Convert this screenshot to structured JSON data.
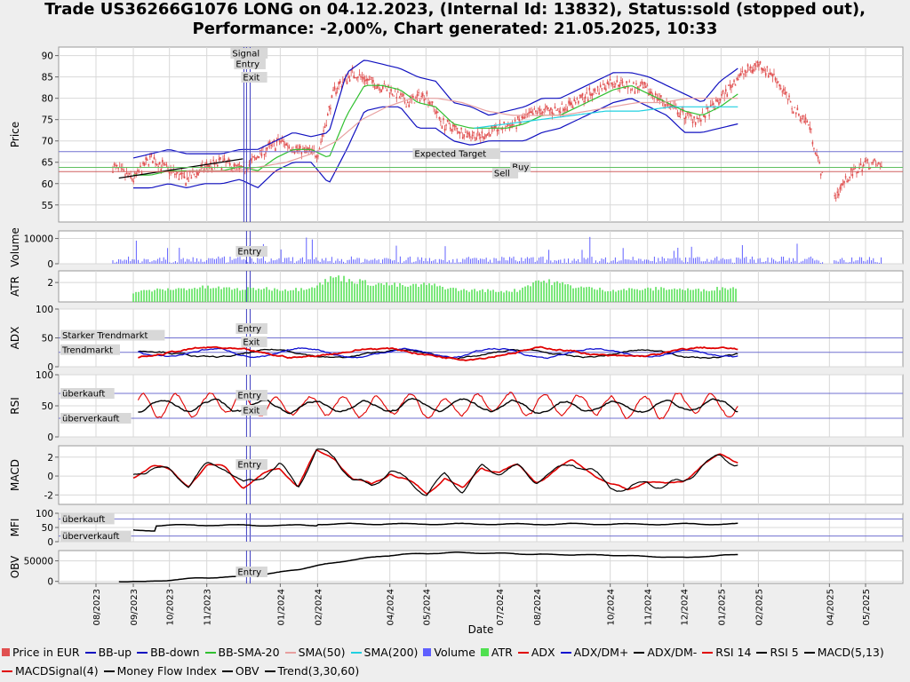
{
  "header": {
    "title_line1": "Trade US36266G1076 LONG on 04.12.2023, (Internal Id: 13832), Status:sold (stopped out),",
    "title_line2": "Performance: -2,00%, Chart generated: 21.05.2025, 10:33"
  },
  "colors": {
    "price": "#e05050",
    "bb": "#1010c0",
    "bb_sma": "#30c030",
    "sma50": "#e8a0a0",
    "sma200": "#20d0e0",
    "volume": "#6060ff",
    "atr": "#50e050",
    "adx": "#e00000",
    "dm_plus": "#1010d0",
    "dm_minus": "#000000",
    "rsi14": "#e00000",
    "rsi5": "#000000",
    "macd": "#000000",
    "macd_signal": "#e00000",
    "mfi": "#000000",
    "obv": "#000000"
  },
  "chart_data": {
    "type": "line",
    "xlabel": "Date",
    "x_ticks": [
      "08/2023",
      "09/2023",
      "10/2023",
      "11/2023",
      "01/2024",
      "02/2024",
      "04/2024",
      "05/2024",
      "07/2024",
      "08/2024",
      "10/2024",
      "11/2024",
      "12/2024",
      "01/2025",
      "02/2025",
      "04/2025",
      "05/2025"
    ],
    "panels": [
      {
        "name": "price",
        "ylabel": "Price",
        "ylim": [
          51,
          92
        ],
        "y_ticks": [
          55,
          60,
          65,
          70,
          75,
          80,
          85,
          90
        ],
        "annotations": [
          "Signal",
          "Entry",
          "Exit",
          "Expected Target",
          "Buy",
          "Sell"
        ],
        "expected_target": 67.5,
        "buy_level": 63.8,
        "sell_level": 62.8,
        "series": [
          {
            "name": "Price in EUR",
            "x": [
              "2023-08-15",
              "2023-09-01",
              "2023-09-15",
              "2023-10-01",
              "2023-10-15",
              "2023-11-01",
              "2023-11-15",
              "2023-12-01",
              "2023-12-15",
              "2024-01-01",
              "2024-01-15",
              "2024-02-01",
              "2024-02-15",
              "2024-03-01",
              "2024-03-15",
              "2024-04-01",
              "2024-04-15",
              "2024-05-01",
              "2024-05-15",
              "2024-06-01",
              "2024-06-15",
              "2024-07-01",
              "2024-07-15",
              "2024-08-01",
              "2024-08-15",
              "2024-09-01",
              "2024-09-15",
              "2024-10-01",
              "2024-10-15",
              "2024-11-01",
              "2024-11-15",
              "2024-12-01",
              "2024-12-15",
              "2025-01-01",
              "2025-01-15",
              "2025-02-01",
              "2025-02-15",
              "2025-03-01",
              "2025-03-15",
              "2025-04-01",
              "2025-04-15",
              "2025-05-01",
              "2025-05-15"
            ],
            "values": [
              64,
              61,
              66,
              63,
              61,
              64,
              65,
              63,
              67,
              70,
              68,
              67,
              82,
              86,
              84,
              82,
              79,
              81,
              74,
              72,
              71,
              73,
              74,
              77,
              77,
              79,
              81,
              84,
              83,
              82,
              79,
              76,
              75,
              80,
              85,
              88,
              85,
              78,
              74,
              55,
              61,
              65,
              64
            ]
          },
          {
            "name": "BB-up",
            "values": [
              66,
              67,
              68,
              67,
              67,
              67,
              68,
              68,
              70,
              72,
              71,
              72,
              86,
              89,
              88,
              87,
              85,
              84,
              79,
              78,
              76,
              77,
              78,
              80,
              80,
              82,
              84,
              86,
              86,
              85,
              83,
              81,
              79,
              84,
              87
            ]
          },
          {
            "name": "BB-down",
            "values": [
              59,
              59,
              60,
              59,
              60,
              60,
              61,
              59,
              63,
              65,
              65,
              60,
              68,
              77,
              78,
              78,
              73,
              73,
              70,
              69,
              70,
              70,
              70,
              72,
              73,
              75,
              77,
              79,
              80,
              78,
              76,
              72,
              72,
              73,
              74
            ]
          },
          {
            "name": "BB-SMA-20",
            "values": [
              62,
              62,
              63,
              63,
              63,
              63,
              64,
              63,
              66,
              68,
              68,
              66,
              76,
              83,
              83,
              82,
              79,
              78,
              74,
              73,
              73,
              73,
              74,
              76,
              76,
              78,
              80,
              82,
              83,
              81,
              79,
              77,
              76,
              78,
              81
            ]
          },
          {
            "name": "SMA(50)",
            "values": [
              63,
              63,
              63,
              64,
              65,
              67,
              70,
              75,
              78,
              80,
              80,
              79,
              77,
              76,
              76,
              76,
              77,
              78,
              79,
              79,
              80,
              80,
              80
            ]
          },
          {
            "name": "SMA(200)",
            "values": [
              73,
              74,
              75,
              76,
              77,
              77,
              78,
              78,
              78
            ]
          }
        ]
      },
      {
        "name": "volume",
        "ylabel": "Volume",
        "y_ticks": [
          0,
          10000
        ],
        "ylim": [
          0,
          13000
        ],
        "annotations": [
          "Entry"
        ]
      },
      {
        "name": "atr",
        "ylabel": "ATR",
        "y_ticks": [
          2
        ],
        "ylim": [
          0,
          3.2
        ]
      },
      {
        "name": "adx",
        "ylabel": "ADX",
        "y_ticks": [
          0,
          50,
          100
        ],
        "ylim": [
          0,
          100
        ],
        "levels": [
          {
            "label": "Starker Trendmarkt",
            "value": 50
          },
          {
            "label": "Trendmarkt",
            "value": 25
          }
        ],
        "annotations": [
          "Entry",
          "Exit"
        ]
      },
      {
        "name": "rsi",
        "ylabel": "RSI",
        "y_ticks": [
          0,
          50,
          100
        ],
        "ylim": [
          0,
          100
        ],
        "levels": [
          {
            "label": "überkauft",
            "value": 70
          },
          {
            "label": "überverkauft",
            "value": 30
          }
        ],
        "annotations": [
          "Entry",
          "Exit"
        ]
      },
      {
        "name": "macd",
        "ylabel": "MACD",
        "y_ticks": [
          -2,
          0,
          2
        ],
        "ylim": [
          -3,
          3.2
        ],
        "annotations": [
          "Entry"
        ]
      },
      {
        "name": "mfi",
        "ylabel": "MFI",
        "y_ticks": [
          0,
          50,
          100
        ],
        "ylim": [
          0,
          100
        ],
        "levels": [
          {
            "label": "überkauft",
            "value": 80
          },
          {
            "label": "überverkauft",
            "value": 20
          }
        ]
      },
      {
        "name": "obv",
        "ylabel": "OBV",
        "y_ticks": [
          0,
          50000
        ],
        "ylim": [
          -5000,
          75000
        ],
        "annotations": [
          "Entry"
        ]
      }
    ]
  },
  "legend": [
    {
      "label": "Price in EUR",
      "kind": "box",
      "color": "#e05050"
    },
    {
      "label": "BB-up",
      "kind": "line",
      "color": "#1010c0"
    },
    {
      "label": "BB-down",
      "kind": "line",
      "color": "#1010c0"
    },
    {
      "label": "BB-SMA-20",
      "kind": "line",
      "color": "#30c030"
    },
    {
      "label": "SMA(50)",
      "kind": "line",
      "color": "#e8a0a0"
    },
    {
      "label": "SMA(200)",
      "kind": "line",
      "color": "#20d0e0"
    },
    {
      "label": "Volume",
      "kind": "box",
      "color": "#6060ff"
    },
    {
      "label": "ATR",
      "kind": "box",
      "color": "#50e050"
    },
    {
      "label": "ADX",
      "kind": "line",
      "color": "#e00000"
    },
    {
      "label": "ADX/DM+",
      "kind": "line",
      "color": "#1010d0"
    },
    {
      "label": "ADX/DM-",
      "kind": "line",
      "color": "#000000"
    },
    {
      "label": "RSI 14",
      "kind": "line",
      "color": "#e00000"
    },
    {
      "label": "RSI 5",
      "kind": "line",
      "color": "#000000"
    },
    {
      "label": "MACD(5,13)",
      "kind": "line",
      "color": "#000000"
    },
    {
      "label": "MACDSignal(4)",
      "kind": "line",
      "color": "#e00000"
    },
    {
      "label": "Money Flow Index",
      "kind": "line",
      "color": "#000000"
    },
    {
      "label": "OBV",
      "kind": "line",
      "color": "#000000"
    },
    {
      "label": "Trend(3,30,60)",
      "kind": "line",
      "color": "#000000"
    }
  ]
}
